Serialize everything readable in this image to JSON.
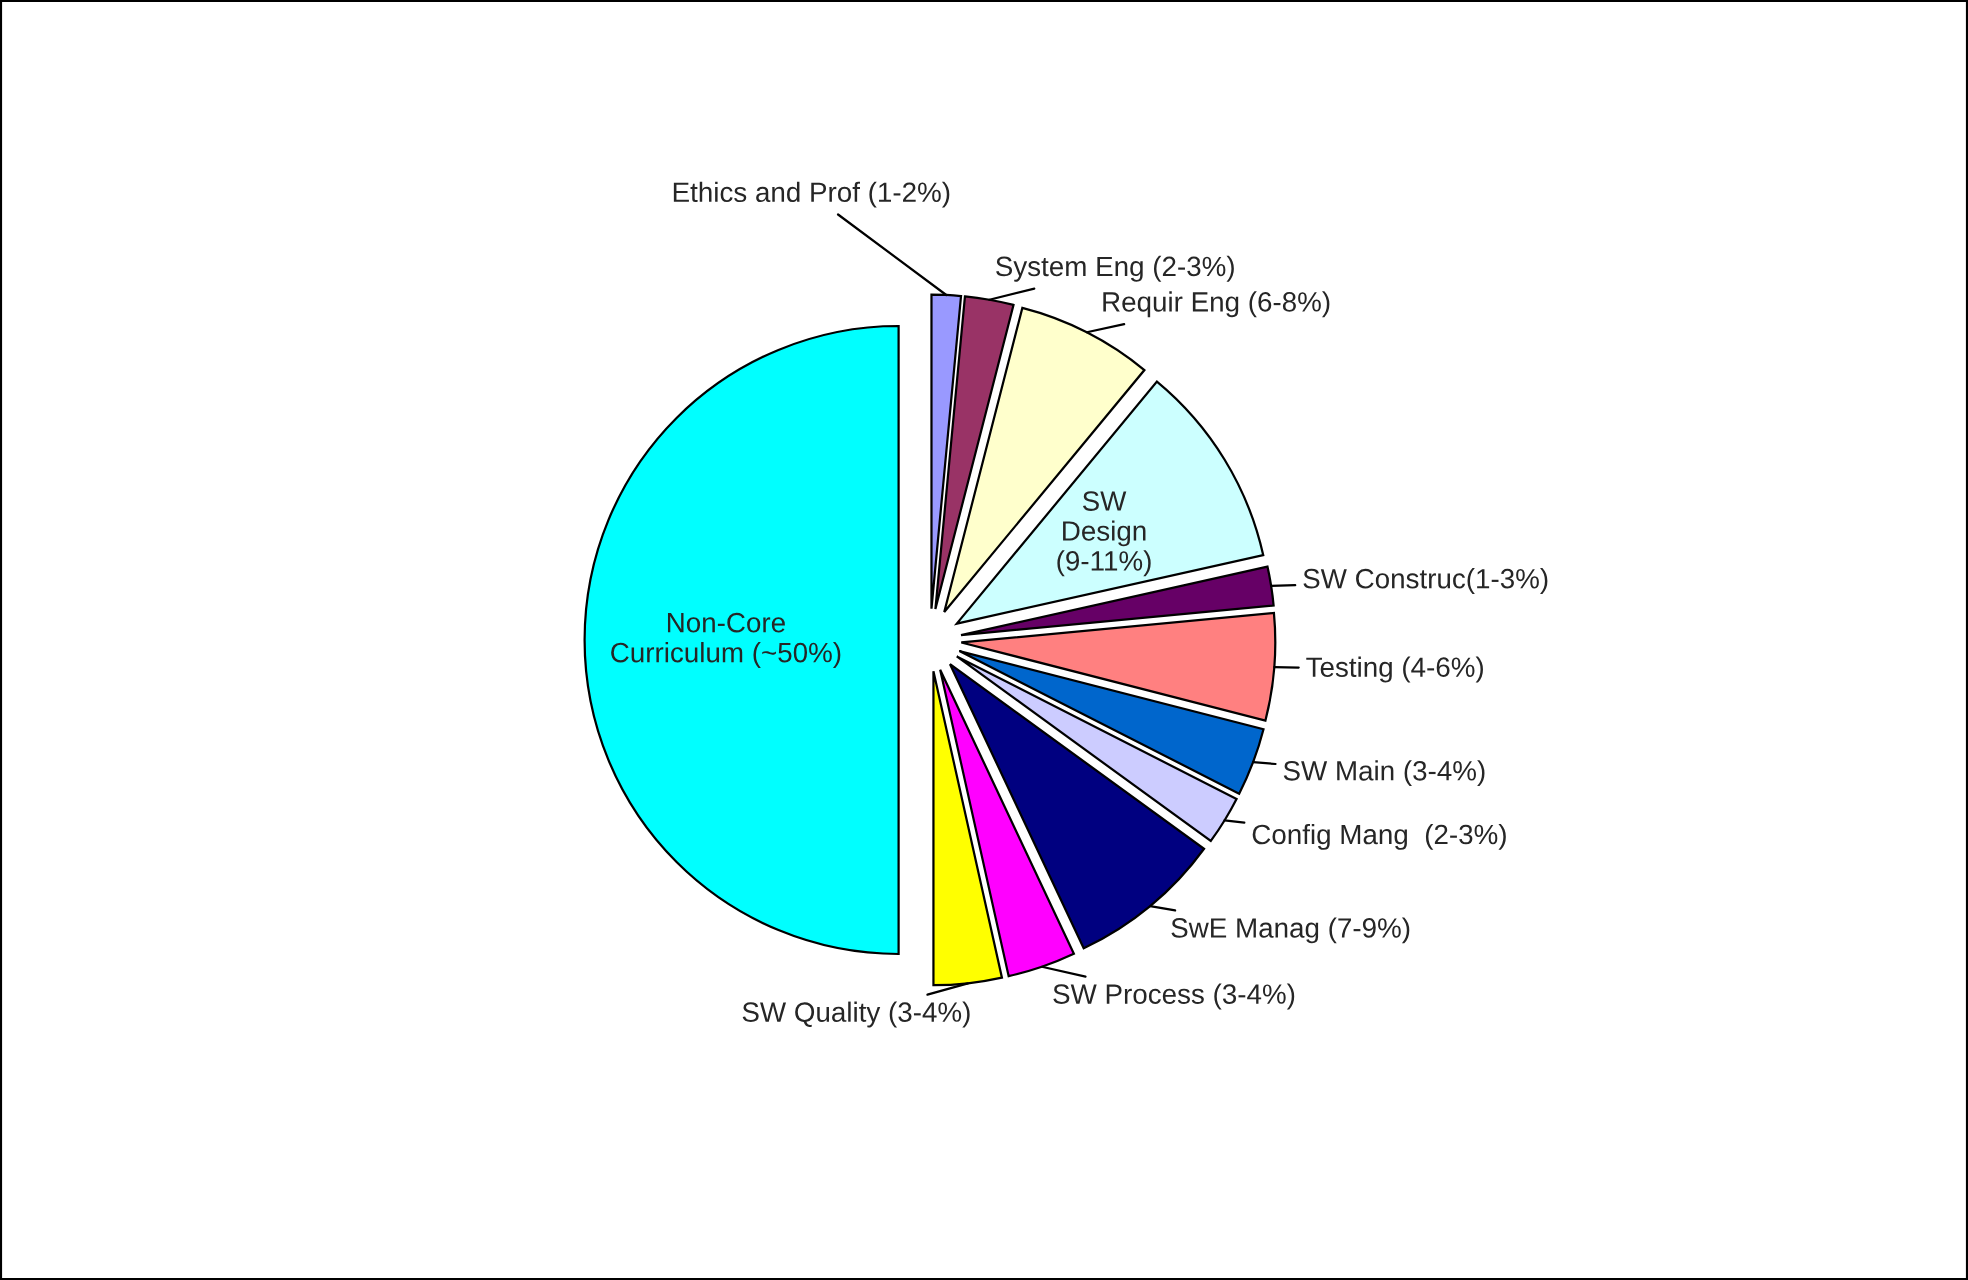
{
  "chart_data": {
    "type": "pie",
    "categories": [
      "Ethics and Prof (1-2%)",
      "System Eng (2-3%)",
      "Requir Eng (6-8%)",
      "SW\nDesign\n(9-11%)",
      "SW Construc(1-3%)",
      "Testing (4-6%)",
      "SW Main (3-4%)",
      "Config Mang  (2-3%)",
      "SwE Manag (7-9%)",
      "SW Process (3-4%)",
      "SW Quality (3-4%)",
      "Non-Core\nCurriculum (~50%)"
    ],
    "values": [
      1.5,
      2.5,
      7,
      10.5,
      2,
      5.5,
      3.5,
      2.5,
      8,
      3.5,
      3.5,
      50
    ],
    "colors": [
      "#9999ff",
      "#993366",
      "#ffffcc",
      "#ccffff",
      "#660066",
      "#ff8080",
      "#0066cc",
      "#ccccff",
      "#000080",
      "#ff00ff",
      "#ffff00",
      "#00ffff"
    ]
  }
}
